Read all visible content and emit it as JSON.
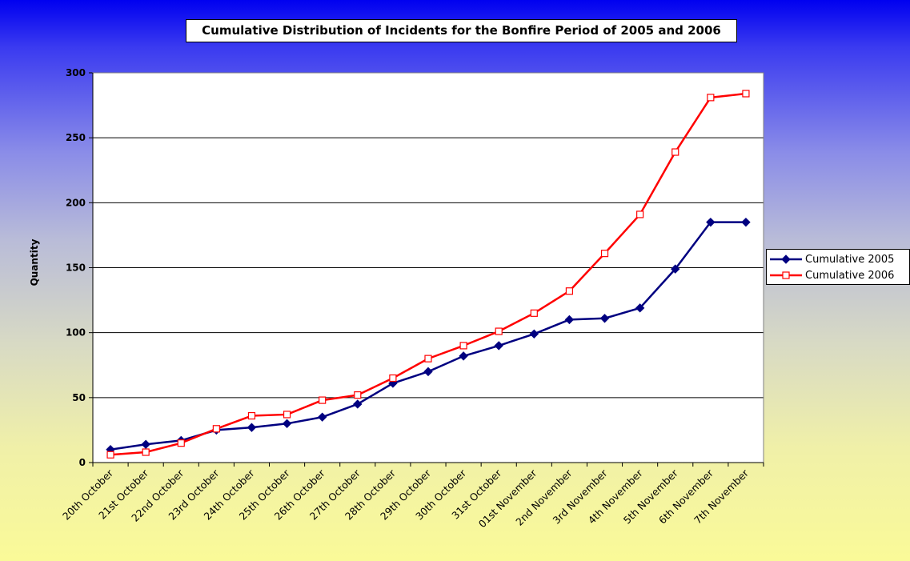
{
  "chart_data": {
    "type": "line",
    "title": "Cumulative Distribution of Incidents for the Bonfire Period of 2005 and 2006",
    "xlabel": "",
    "ylabel": "Quantity",
    "ylim": [
      0,
      300
    ],
    "yticks": [
      0,
      50,
      100,
      150,
      200,
      250,
      300
    ],
    "grid": "horizontal",
    "legend_position": "right",
    "categories": [
      "20th October",
      "21st October",
      "22nd October",
      "23rd October",
      "24th October",
      "25th October",
      "26th October",
      "27th October",
      "28th October",
      "29th October",
      "30th October",
      "31st October",
      "01st November",
      "2nd November",
      "3rd November",
      "4th November",
      "5th November",
      "6th November",
      "7th November"
    ],
    "series": [
      {
        "name": "Cumulative 2005",
        "color": "#000080",
        "marker": "diamond",
        "values": [
          10,
          14,
          17,
          25,
          27,
          30,
          35,
          45,
          61,
          70,
          82,
          90,
          99,
          110,
          111,
          119,
          149,
          185,
          185
        ]
      },
      {
        "name": "Cumulative 2006",
        "color": "#ff0000",
        "marker": "square",
        "values": [
          6,
          8,
          15,
          26,
          36,
          37,
          48,
          52,
          65,
          80,
          90,
          101,
          115,
          132,
          161,
          191,
          239,
          281,
          284
        ]
      }
    ]
  }
}
